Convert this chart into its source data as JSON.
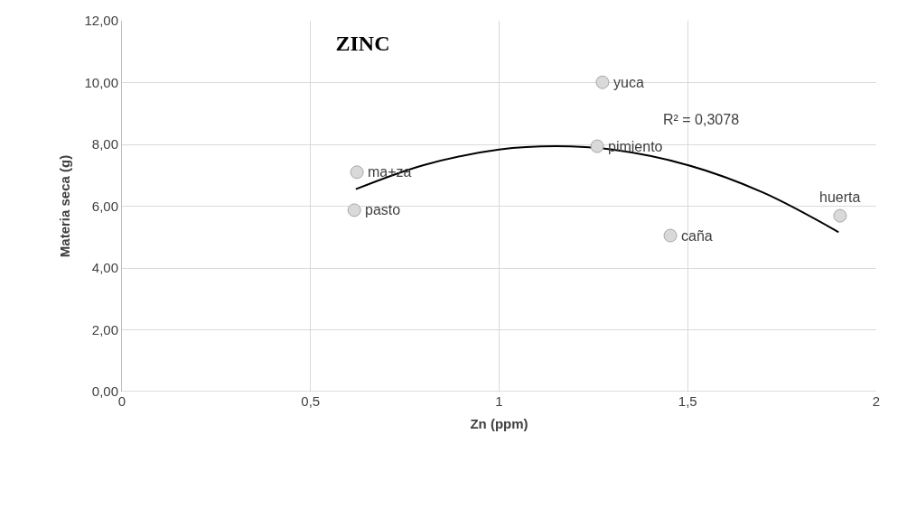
{
  "chart_data": {
    "type": "scatter",
    "title": "ZINC",
    "xlabel": "Zn (ppm)",
    "ylabel": "Materia seca (g)",
    "series": [
      {
        "color": "#d9d9d9",
        "x": [
          0.623,
          0.616,
          1.274,
          1.26,
          1.454,
          1.904
        ],
        "values": [
          7.1,
          5.87,
          10.01,
          7.94,
          5.05,
          5.69
        ]
      },
      {
        "type": "line",
        "marker": "none",
        "color": "#000000",
        "x": [
          0.62,
          0.8,
          1.0,
          1.15,
          1.3,
          1.5,
          1.7,
          1.9
        ],
        "values": [
          6.55,
          7.33,
          7.83,
          7.94,
          7.83,
          7.33,
          6.44,
          5.16
        ]
      }
    ],
    "annotations": [
      {
        "text": "ma+za",
        "x": 0.623,
        "y": 7.1
      },
      {
        "text": "pasto",
        "x": 0.616,
        "y": 5.87
      },
      {
        "text": "yuca",
        "x": 1.274,
        "y": 10.01
      },
      {
        "text": "pimiento",
        "x": 1.26,
        "y": 7.94
      },
      {
        "text": "caña",
        "x": 1.454,
        "y": 5.05
      },
      {
        "text": "huerta",
        "x": 1.904,
        "y": 5.69
      },
      "R² = 0,3078"
    ],
    "xlim": [
      0,
      2
    ],
    "ylim": [
      0,
      12
    ],
    "xticks": [
      0,
      {
        "value": 0.5,
        "label": "0,5"
      },
      1,
      {
        "value": 1.5,
        "label": "1,5"
      },
      2
    ],
    "yticks": [
      {
        "value": 0,
        "label": "0,00"
      },
      {
        "value": 2,
        "label": "2,00"
      },
      {
        "value": 4,
        "label": "4,00"
      },
      {
        "value": 6,
        "label": "6,00"
      },
      {
        "value": 8,
        "label": "8,00"
      },
      {
        "value": 10,
        "label": "10,00"
      },
      {
        "value": 12,
        "label": "12,00"
      }
    ],
    "grid": true,
    "legend": false,
    "marker": "circle",
    "line_style": "solid"
  }
}
